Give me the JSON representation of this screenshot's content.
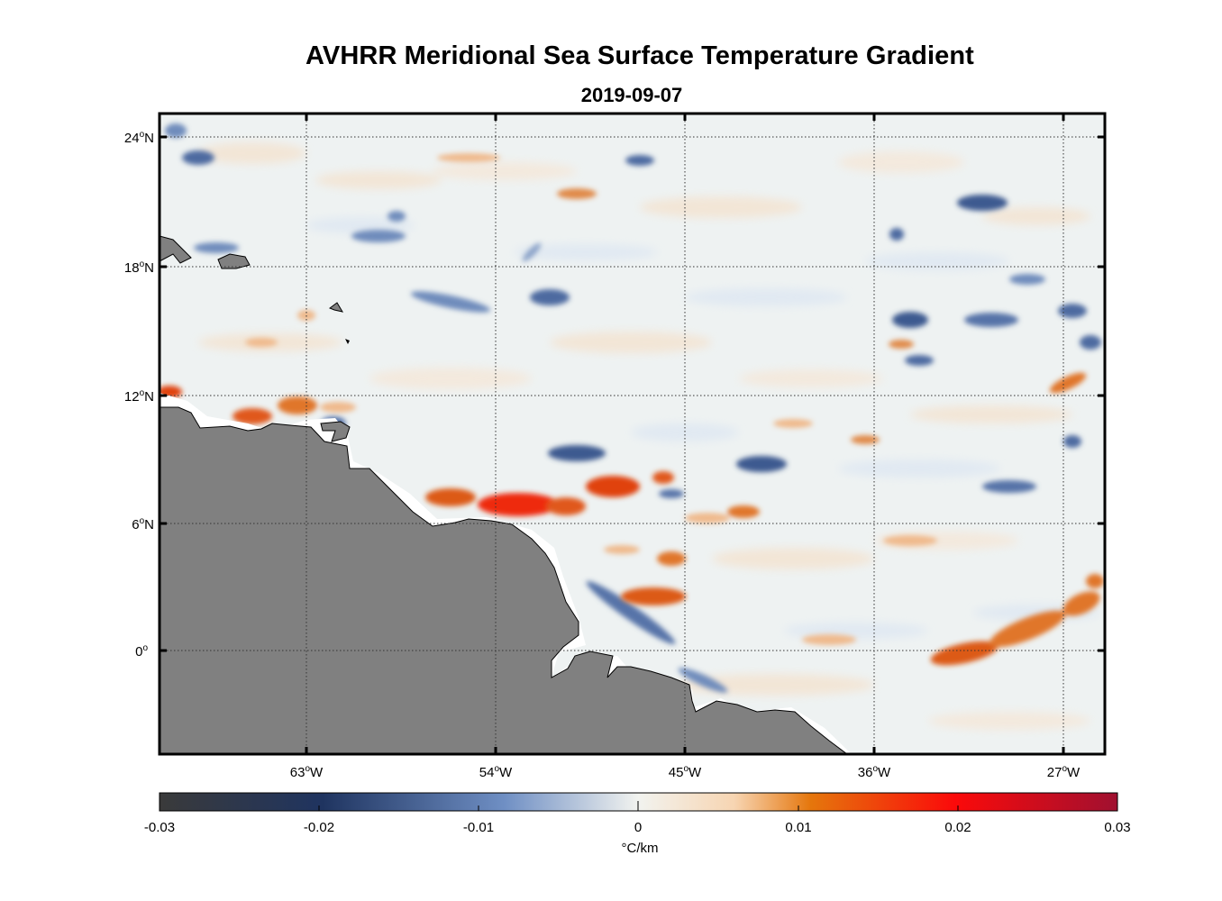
{
  "title": "AVHRR Meridional Sea Surface Temperature Gradient",
  "subtitle": "2019-09-07",
  "map": {
    "lon_range": [
      -70,
      -25
    ],
    "lat_range": [
      -5,
      25
    ],
    "x_ticks": [
      {
        "lon": -63,
        "deg": "63",
        "dir": "W"
      },
      {
        "lon": -54,
        "deg": "54",
        "dir": "W"
      },
      {
        "lon": -45,
        "deg": "45",
        "dir": "W"
      },
      {
        "lon": -36,
        "deg": "36",
        "dir": "W"
      },
      {
        "lon": -27,
        "deg": "27",
        "dir": "W"
      }
    ],
    "y_ticks": [
      {
        "lat": 24,
        "deg": "24",
        "dir": "N"
      },
      {
        "lat": 18,
        "deg": "18",
        "dir": "N"
      },
      {
        "lat": 12,
        "deg": "12",
        "dir": "N"
      },
      {
        "lat": 6,
        "deg": "6",
        "dir": "N"
      },
      {
        "lat": 0,
        "deg": "0",
        "dir": ""
      }
    ],
    "colors": {
      "land": "#808080",
      "ocean": "#eef2f2",
      "positive_strong": "#d9531a",
      "positive_peak": "#f20f0a",
      "negative": "#3c5a90",
      "grid": "#333333"
    }
  },
  "colorbar": {
    "ticks": [
      "-0.03",
      "-0.02",
      "-0.01",
      "0",
      "0.01",
      "0.02",
      "0.03"
    ],
    "unit": "°C/km",
    "stops": [
      "#3a3a3a",
      "#1f3460",
      "#6f8fc4",
      "#f2f3ef",
      "#f7d5b2",
      "#e5760c",
      "#fb0a0a",
      "#a01030"
    ]
  }
}
